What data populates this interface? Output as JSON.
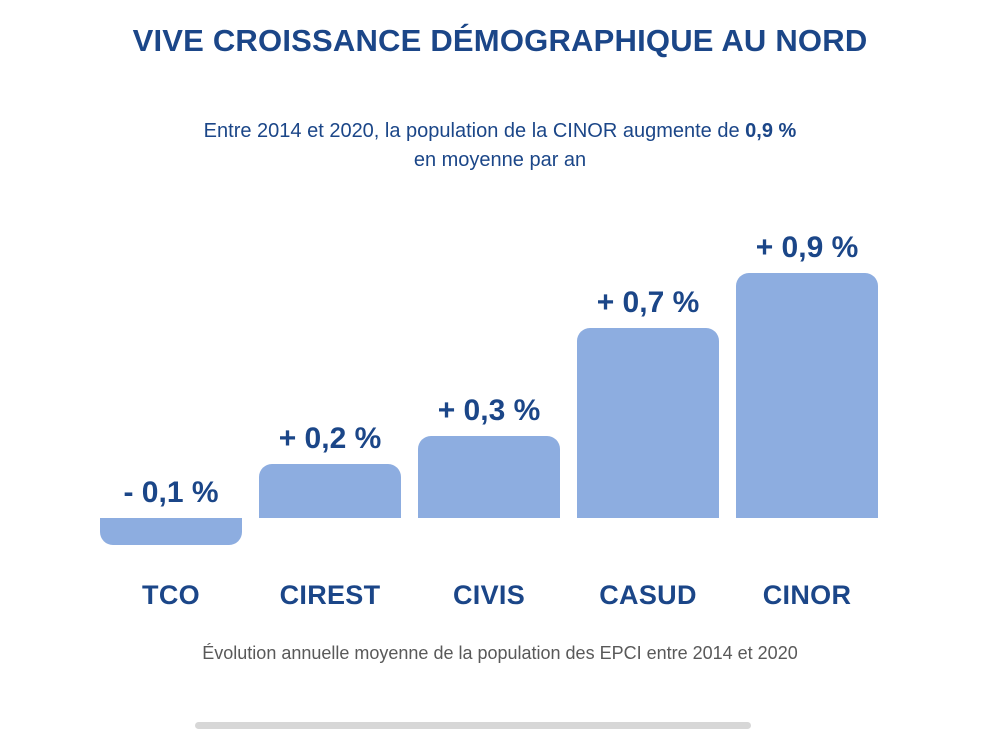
{
  "page": {
    "title": "VIVE CROISSANCE DÉMOGRAPHIQUE AU NORD",
    "subtitle": {
      "line1_prefix": "Entre 2014 et 2020, la population de la CINOR augmente de ",
      "line1_bold": "0,9 %",
      "line2": "en moyenne par an"
    },
    "caption": "Évolution annuelle moyenne de la population des EPCI entre 2014 et 2020"
  },
  "colors": {
    "navy": "#1b4688",
    "bar_blue": "#8dade0",
    "caption_gray": "#595959",
    "divider_gray": "#d7d7d7",
    "background": "#ffffff"
  },
  "chart_data": {
    "type": "bar",
    "title": "VIVE CROISSANCE DÉMOGRAPHIQUE AU NORD",
    "subtitle": "Entre 2014 et 2020, la population de la CINOR augmente de 0,9 % en moyenne par an",
    "caption": "Évolution annuelle moyenne de la population des EPCI entre 2014 et 2020",
    "categories": [
      "TCO",
      "CIREST",
      "CIVIS",
      "CASUD",
      "CINOR"
    ],
    "values": [
      -0.1,
      0.2,
      0.3,
      0.7,
      0.9
    ],
    "value_labels": [
      "- 0,1 %",
      "+ 0,2 %",
      "+ 0,3 %",
      "+ 0,7 %",
      "+ 0,9 %"
    ],
    "unit": "% par an",
    "xlabel": "",
    "ylabel": "",
    "ylim": [
      -0.2,
      1.0
    ],
    "grid": false,
    "legend": "none",
    "bar_color": "#8dade0",
    "label_color": "#1b4688"
  }
}
